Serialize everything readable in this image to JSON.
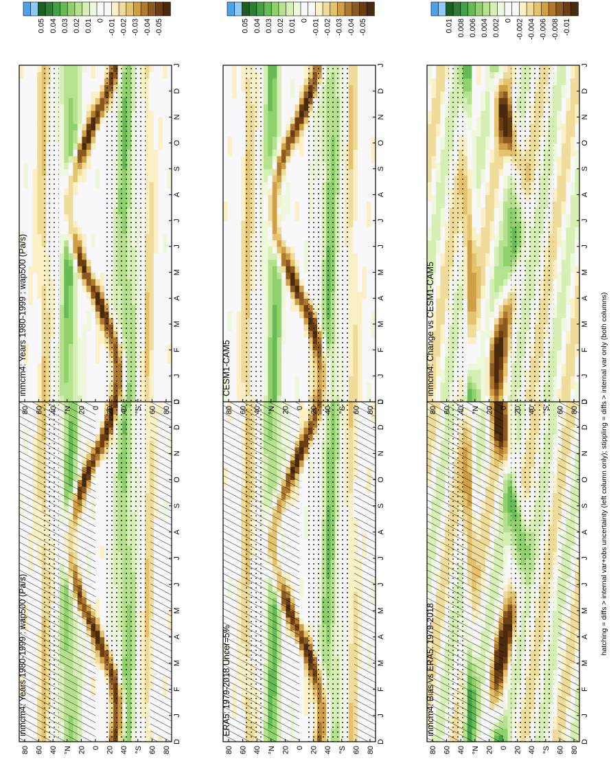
{
  "figure": {
    "footnote": "hatching = diffs > internal var+obs uncertainty (left column only); stippling = diffs > internal var only (both columns)"
  },
  "colors": {
    "bar_top": [
      "#4fa1ec",
      "#8fc9f4"
    ],
    "bar_main": [
      "#1b5e20",
      "#2e7d32",
      "#43a047",
      "#66bb55",
      "#8fd16b",
      "#b6e28f",
      "#d6efb4",
      "#eef8dc",
      "#f8f8fa",
      "#f8f8fa",
      "#fbf0c6",
      "#f0dc9a",
      "#e4c36c",
      "#cf9f45",
      "#b07a2e",
      "#8c5a1e",
      "#6b3e12",
      "#4a2a0c"
    ],
    "blue_anomaly": "#2f8fe0"
  },
  "chart_data": [
    {
      "id": "panel-left-top",
      "type": "heatmap",
      "title": "inmcm4: Years 1980-1999 : wap500 (Pa/s)",
      "x_ticks": [
        "D",
        "J",
        "F",
        "M",
        "A",
        "M",
        "J",
        "J",
        "A",
        "S",
        "O",
        "N",
        "D",
        "J"
      ],
      "y_ticks": [
        "80",
        "60",
        "40",
        "°N",
        "20",
        "0",
        "20",
        "40",
        "°S",
        "60",
        "80"
      ],
      "colorbar": [
        "0.05",
        "0.04",
        "0.03",
        "0.02",
        "0.01",
        "0",
        "-0.01",
        "-0.02",
        "-0.03",
        "-0.04",
        "-0.05"
      ],
      "hatching": true,
      "stippling": true,
      "field": "model"
    },
    {
      "id": "panel-right-top",
      "type": "heatmap",
      "title": "inmcm4: Years 1980-1999 : wap500 (Pa/s)",
      "x_ticks": [
        "D",
        "J",
        "F",
        "M",
        "A",
        "M",
        "J",
        "J",
        "A",
        "S",
        "O",
        "N",
        "D",
        "J"
      ],
      "y_ticks": [
        "80",
        "60",
        "40",
        "°N",
        "20",
        "0",
        "20",
        "40",
        "°S",
        "60",
        "80"
      ],
      "colorbar": [
        "0.05",
        "0.04",
        "0.03",
        "0.02",
        "0.01",
        "0",
        "-0.01",
        "-0.02",
        "-0.03",
        "-0.04",
        "-0.05"
      ],
      "hatching": false,
      "stippling": true,
      "field": "model"
    },
    {
      "id": "panel-left-middle",
      "type": "heatmap",
      "title": "ERA5: 1979-2018 Uncer=5%",
      "x_ticks": [
        "D",
        "J",
        "F",
        "M",
        "A",
        "M",
        "J",
        "J",
        "A",
        "S",
        "O",
        "N",
        "D",
        "J"
      ],
      "y_ticks": [
        "80",
        "60",
        "40",
        "°N",
        "20",
        "0",
        "20",
        "40",
        "°S",
        "60",
        "80"
      ],
      "colorbar": [
        "0.05",
        "0.04",
        "0.03",
        "0.02",
        "0.01",
        "0",
        "-0.01",
        "-0.02",
        "-0.03",
        "-0.04",
        "-0.05"
      ],
      "hatching": true,
      "stippling": true,
      "field": "obs"
    },
    {
      "id": "panel-right-middle",
      "type": "heatmap",
      "title": "CESM1-CAM5",
      "x_ticks": [
        "D",
        "J",
        "F",
        "M",
        "A",
        "M",
        "J",
        "J",
        "A",
        "S",
        "O",
        "N",
        "D",
        "J"
      ],
      "y_ticks": [
        "80",
        "60",
        "40",
        "°N",
        "20",
        "0",
        "20",
        "40",
        "°S",
        "60",
        "80"
      ],
      "colorbar": [
        "0.05",
        "0.04",
        "0.03",
        "0.02",
        "0.01",
        "0",
        "-0.01",
        "-0.02",
        "-0.03",
        "-0.04",
        "-0.05"
      ],
      "hatching": false,
      "stippling": true,
      "field": "model"
    },
    {
      "id": "panel-left-bottom",
      "type": "heatmap",
      "title": "inmcm4: Bias vs ERA5: 1979-2018",
      "x_ticks": [
        "D",
        "J",
        "F",
        "M",
        "A",
        "M",
        "J",
        "J",
        "A",
        "S",
        "O",
        "N",
        "D",
        "J"
      ],
      "y_ticks": [
        "80",
        "60",
        "40",
        "°N",
        "20",
        "0",
        "20",
        "40",
        "°S",
        "60",
        "80"
      ],
      "colorbar": [
        "0.01",
        "0.008",
        "0.006",
        "0.004",
        "0.002",
        "0",
        "-0.002",
        "-0.004",
        "-0.006",
        "-0.008",
        "-0.01"
      ],
      "hatching": true,
      "stippling": true,
      "field": "diff"
    },
    {
      "id": "panel-right-bottom",
      "type": "heatmap",
      "title": "inmcm4: Change vs CESM1-CAM5",
      "x_ticks": [
        "D",
        "J",
        "F",
        "M",
        "A",
        "M",
        "J",
        "J",
        "A",
        "S",
        "O",
        "N",
        "D",
        "J"
      ],
      "y_ticks": [
        "80",
        "60",
        "40",
        "°N",
        "20",
        "0",
        "20",
        "40",
        "°S",
        "60",
        "80"
      ],
      "colorbar": [
        "0.01",
        "0.008",
        "0.006",
        "0.004",
        "0.002",
        "0",
        "-0.002",
        "-0.004",
        "-0.006",
        "-0.008",
        "-0.01"
      ],
      "hatching": false,
      "stippling": true,
      "field": "diff"
    }
  ]
}
